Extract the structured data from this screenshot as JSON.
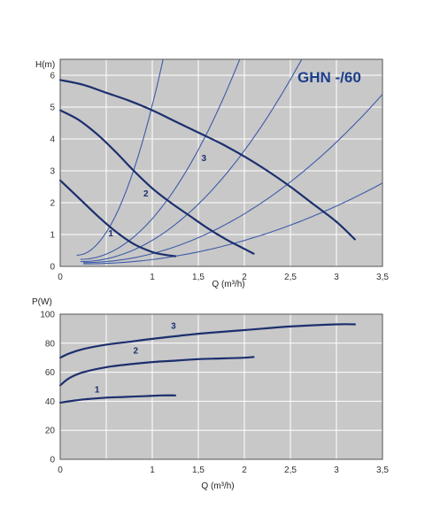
{
  "colors": {
    "plot_bg": "#c8c8c8",
    "grid": "#ffffff",
    "pump_curve": "#1c2f6e",
    "system_curve": "#3d5ba8",
    "title": "#1b3f8a"
  },
  "chart_data": [
    {
      "type": "line",
      "title": "GHN -/60",
      "ylabel": "H(m)",
      "xlabel": "Q (m³/h)",
      "xlim": [
        0,
        3.5
      ],
      "ylim": [
        0,
        6.5
      ],
      "grid": true,
      "x_ticks": [
        {
          "v": 0,
          "label": "0"
        },
        {
          "v": 0.5,
          "label": ""
        },
        {
          "v": 1,
          "label": "1"
        },
        {
          "v": 1.5,
          "label": "1,5"
        },
        {
          "v": 2,
          "label": "2"
        },
        {
          "v": 2.5,
          "label": "2,5"
        },
        {
          "v": 3,
          "label": "3"
        },
        {
          "v": 3.5,
          "label": "3,5"
        }
      ],
      "y_ticks": [
        {
          "v": 0,
          "label": "0"
        },
        {
          "v": 1,
          "label": "1"
        },
        {
          "v": 2,
          "label": "2"
        },
        {
          "v": 3,
          "label": "3"
        },
        {
          "v": 4,
          "label": "4"
        },
        {
          "v": 5,
          "label": "5"
        },
        {
          "v": 6,
          "label": "6"
        }
      ],
      "series": [
        {
          "name": "1",
          "label_at": [
            0.55,
            0.95
          ],
          "x": [
            0,
            0.2,
            0.4,
            0.6,
            0.8,
            1.0,
            1.1,
            1.25
          ],
          "y": [
            2.7,
            2.15,
            1.6,
            1.1,
            0.7,
            0.45,
            0.38,
            0.32
          ]
        },
        {
          "name": "2",
          "label_at": [
            0.93,
            2.2
          ],
          "x": [
            0,
            0.2,
            0.4,
            0.6,
            0.8,
            1.0,
            1.2,
            1.4,
            1.6,
            1.8,
            2.0,
            2.1
          ],
          "y": [
            4.9,
            4.6,
            4.15,
            3.6,
            3.0,
            2.45,
            2.0,
            1.6,
            1.2,
            0.85,
            0.55,
            0.4
          ]
        },
        {
          "name": "3",
          "label_at": [
            1.56,
            3.3
          ],
          "x": [
            0,
            0.25,
            0.5,
            0.75,
            1.0,
            1.25,
            1.5,
            1.75,
            2.0,
            2.25,
            2.5,
            2.75,
            3.0,
            3.2
          ],
          "y": [
            5.85,
            5.7,
            5.45,
            5.2,
            4.9,
            4.55,
            4.2,
            3.85,
            3.45,
            3.0,
            2.5,
            1.95,
            1.4,
            0.85
          ]
        }
      ],
      "system_curves": [
        {
          "x0": 0.18,
          "y0": 0.35,
          "k": 7.0
        },
        {
          "x0": 0.22,
          "y0": 0.22,
          "k": 2.1
        },
        {
          "x0": 0.22,
          "y0": 0.15,
          "k": 1.1
        },
        {
          "x0": 0.25,
          "y0": 0.12,
          "k": 0.5
        },
        {
          "x0": 0.25,
          "y0": 0.08,
          "k": 0.24
        }
      ]
    },
    {
      "type": "line",
      "ylabel": "P(W)",
      "xlabel": "Q (m³/h)",
      "xlim": [
        0,
        3.5
      ],
      "ylim": [
        0,
        100
      ],
      "grid": true,
      "x_ticks": [
        {
          "v": 0,
          "label": "0"
        },
        {
          "v": 0.5,
          "label": ""
        },
        {
          "v": 1,
          "label": "1"
        },
        {
          "v": 1.5,
          "label": "1,5"
        },
        {
          "v": 2,
          "label": "2"
        },
        {
          "v": 2.5,
          "label": "2,5"
        },
        {
          "v": 3,
          "label": "3"
        },
        {
          "v": 3.5,
          "label": "3,5"
        }
      ],
      "y_ticks": [
        {
          "v": 0,
          "label": "0"
        },
        {
          "v": 20,
          "label": "20"
        },
        {
          "v": 40,
          "label": "40"
        },
        {
          "v": 60,
          "label": "60"
        },
        {
          "v": 80,
          "label": "80"
        },
        {
          "v": 100,
          "label": "100"
        }
      ],
      "series": [
        {
          "name": "1",
          "label_at": [
            0.4,
            46
          ],
          "x": [
            0,
            0.15,
            0.3,
            0.5,
            0.7,
            0.9,
            1.1,
            1.25
          ],
          "y": [
            39,
            40.5,
            41.5,
            42.5,
            43,
            43.5,
            44,
            44
          ]
        },
        {
          "name": "2",
          "label_at": [
            0.82,
            73
          ],
          "x": [
            0,
            0.1,
            0.25,
            0.5,
            0.75,
            1.0,
            1.25,
            1.5,
            1.75,
            2.0,
            2.1
          ],
          "y": [
            51,
            56,
            60,
            63.5,
            65.5,
            67,
            68,
            69,
            69.5,
            70,
            70.5
          ]
        },
        {
          "name": "3",
          "label_at": [
            1.23,
            90
          ],
          "x": [
            0,
            0.1,
            0.25,
            0.5,
            0.75,
            1.0,
            1.5,
            2.0,
            2.5,
            3.0,
            3.2
          ],
          "y": [
            70,
            73,
            76,
            79,
            81,
            83,
            86.5,
            89,
            91.5,
            93,
            93
          ]
        }
      ]
    }
  ]
}
